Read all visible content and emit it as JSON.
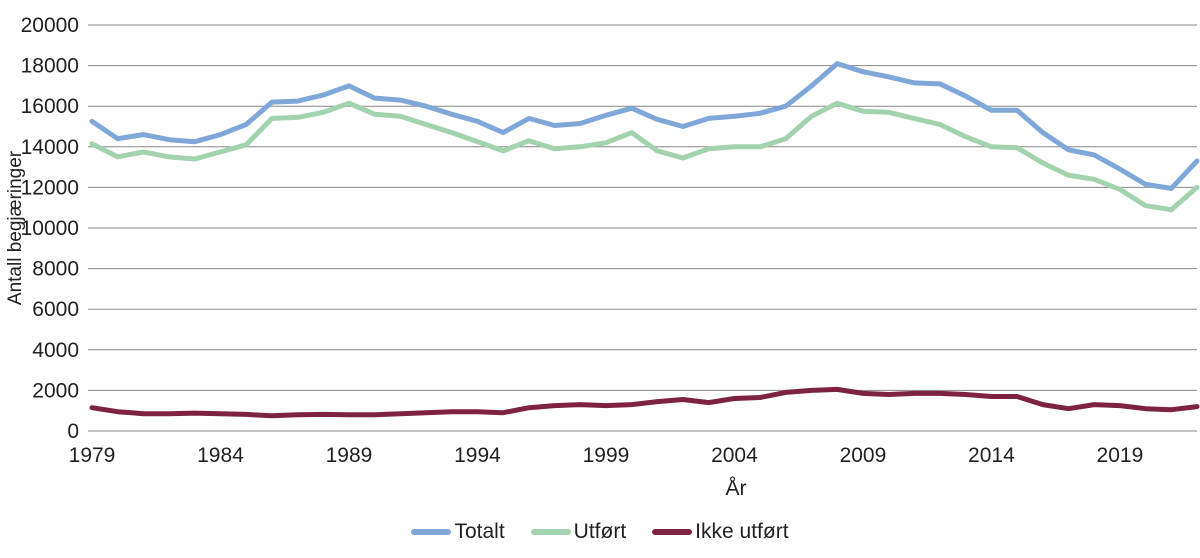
{
  "chart_data": {
    "type": "line",
    "title": "",
    "xlabel": "År",
    "ylabel": "Antall begjæringer",
    "ylim": [
      0,
      20000
    ],
    "ytick_step": 2000,
    "xticks": [
      1979,
      1984,
      1989,
      1994,
      1999,
      2004,
      2009,
      2014,
      2019
    ],
    "grid": true,
    "legend_position": "bottom",
    "x": [
      1979,
      1980,
      1981,
      1982,
      1983,
      1984,
      1985,
      1986,
      1987,
      1988,
      1989,
      1990,
      1991,
      1992,
      1993,
      1994,
      1995,
      1996,
      1997,
      1998,
      1999,
      2000,
      2001,
      2002,
      2003,
      2004,
      2005,
      2006,
      2007,
      2008,
      2009,
      2010,
      2011,
      2012,
      2013,
      2014,
      2015,
      2016,
      2017,
      2018,
      2019,
      2020,
      2021,
      2022
    ],
    "series": [
      {
        "name": "Totalt",
        "color": "#7fa8d8",
        "values": [
          15250,
          14400,
          14600,
          14350,
          14250,
          14600,
          15100,
          16200,
          16250,
          16550,
          17000,
          16400,
          16300,
          16000,
          15600,
          15250,
          14700,
          15400,
          15050,
          15150,
          15550,
          15900,
          15350,
          15000,
          15400,
          15500,
          15650,
          16000,
          17000,
          18100,
          17700,
          17450,
          17150,
          17100,
          16500,
          15800,
          15800,
          14700,
          13850,
          13600,
          12900,
          12150,
          11950,
          13300
        ]
      },
      {
        "name": "Utført",
        "color": "#a2d2ae",
        "values": [
          14150,
          13500,
          13750,
          13500,
          13400,
          13750,
          14100,
          15400,
          15450,
          15700,
          16150,
          15600,
          15500,
          15100,
          14700,
          14250,
          13800,
          14300,
          13900,
          14000,
          14200,
          14700,
          13800,
          13450,
          13900,
          14000,
          14000,
          14400,
          15500,
          16150,
          15750,
          15700,
          15400,
          15100,
          14500,
          14000,
          13950,
          13200,
          12600,
          12400,
          11900,
          11100,
          10900,
          12000
        ]
      },
      {
        "name": "Ikke utført",
        "color": "#7e2242",
        "values": [
          1150,
          950,
          850,
          850,
          880,
          850,
          820,
          750,
          800,
          820,
          800,
          800,
          850,
          900,
          950,
          950,
          900,
          1150,
          1250,
          1300,
          1250,
          1300,
          1450,
          1550,
          1400,
          1600,
          1650,
          1900,
          2000,
          2050,
          1850,
          1800,
          1850,
          1850,
          1800,
          1700,
          1700,
          1300,
          1100,
          1300,
          1250,
          1100,
          1050,
          1200
        ]
      }
    ]
  },
  "colors": {
    "text": "#231f20",
    "gridline": "#878787",
    "background": "#ffffff"
  }
}
